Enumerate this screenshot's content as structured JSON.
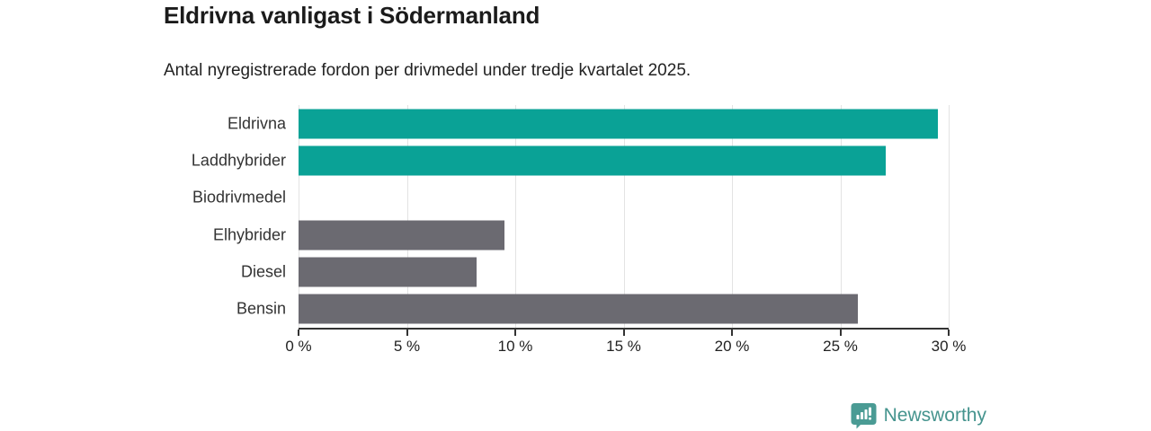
{
  "header": {
    "title": "Eldrivna vanligast i Södermanland",
    "subtitle": "Antal nyregistrerade fordon per drivmedel under tredje kvartalet 2025."
  },
  "chart_data": {
    "type": "bar",
    "orientation": "horizontal",
    "title": "Eldrivna vanligast i Södermanland",
    "subtitle": "Antal nyregistrerade fordon per drivmedel under tredje kvartalet 2025.",
    "categories": [
      "Eldrivna",
      "Laddhybrider",
      "Biodrivmedel",
      "Elhybrider",
      "Diesel",
      "Bensin"
    ],
    "values": [
      29.5,
      27.1,
      0,
      9.5,
      8.2,
      25.8
    ],
    "bar_colors": [
      "#0aa296",
      "#0aa296",
      "#0aa296",
      "#6b6a71",
      "#6b6a71",
      "#6b6a71"
    ],
    "xlim": [
      0,
      30
    ],
    "x_ticks": [
      0,
      5,
      10,
      15,
      20,
      25,
      30
    ],
    "x_tick_labels": [
      "0 %",
      "5 %",
      "10 %",
      "15 %",
      "20 %",
      "25 %",
      "30 %"
    ],
    "xlabel": "",
    "ylabel": "",
    "grid": true,
    "legend": "none"
  },
  "branding": {
    "logo_text": "Newsworthy",
    "logo_color": "#45948e",
    "logo_icon": "bar-chart-speech-bubble-icon"
  },
  "colors": {
    "accent_teal": "#0aa296",
    "neutral_gray": "#6b6a71",
    "gridline": "#e3e3e3",
    "axis": "#333333",
    "title_text": "#1b1b1b",
    "body_text": "#222222"
  }
}
